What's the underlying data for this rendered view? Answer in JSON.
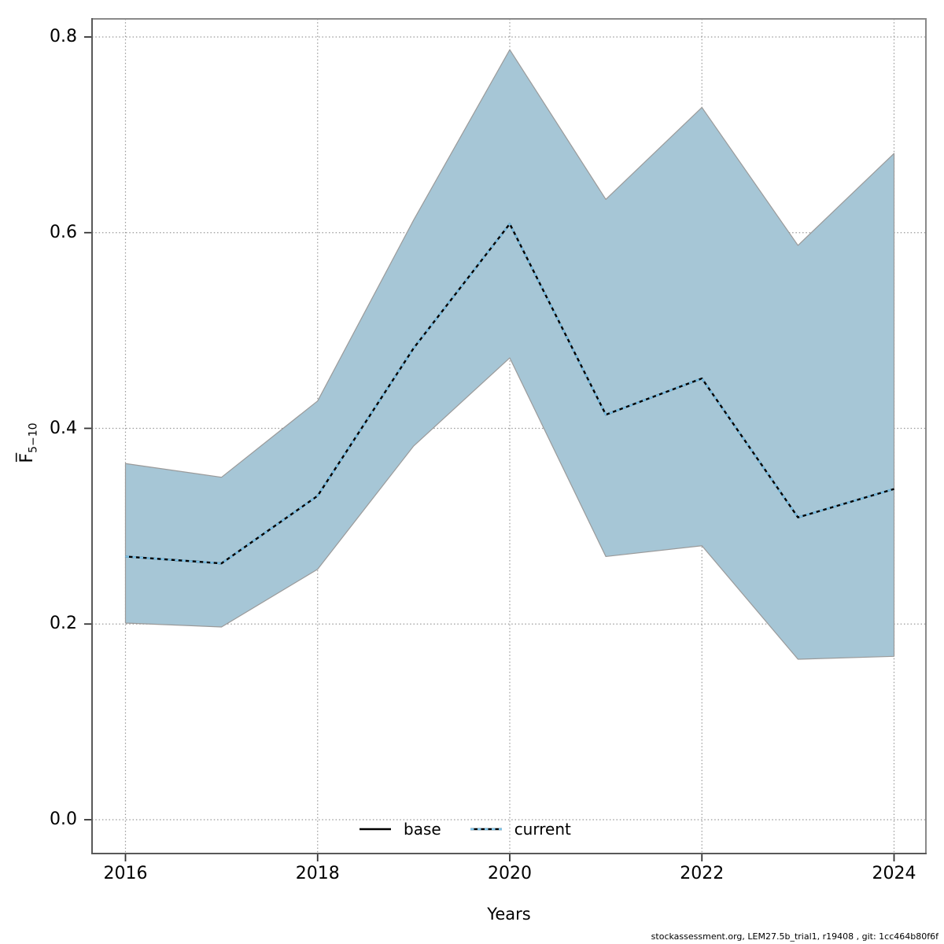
{
  "page": {
    "background": "#ffffff"
  },
  "footer": {
    "text": "stockassessment.org, LEM27.5b_trial1, r19408 , git: 1cc464b80f6f"
  },
  "chart_data": {
    "type": "area",
    "title": "",
    "xlabel": "Years",
    "ylabel_base": "F̅",
    "ylabel_sub": "5−10",
    "xlim": [
      2016,
      2024
    ],
    "ylim": [
      0.0,
      0.8
    ],
    "grid": "dotted",
    "legend_position": "bottom-center",
    "x": [
      2016,
      2017,
      2018,
      2019,
      2020,
      2021,
      2022,
      2023,
      2024
    ],
    "x_tick_labels": [
      "2016",
      "2018",
      "2020",
      "2022",
      "2024"
    ],
    "y_tick_labels": [
      "0.0",
      "0.2",
      "0.4",
      "0.6",
      "0.8"
    ],
    "series": [
      {
        "name": "base",
        "type": "line",
        "style": "solid",
        "color": "#000000",
        "values": [
          0.269,
          0.262,
          0.331,
          0.482,
          0.609,
          0.414,
          0.451,
          0.309,
          0.338
        ]
      },
      {
        "name": "current",
        "type": "line",
        "style": "dotted",
        "color": "#7ac1e7",
        "values": [
          0.269,
          0.262,
          0.331,
          0.482,
          0.609,
          0.414,
          0.451,
          0.309,
          0.338
        ]
      },
      {
        "name": "ci-upper",
        "type": "band-edge",
        "values": [
          0.364,
          0.35,
          0.428,
          0.613,
          0.787,
          0.634,
          0.728,
          0.587,
          0.681
        ]
      },
      {
        "name": "ci-lower",
        "type": "band-edge",
        "values": [
          0.201,
          0.197,
          0.256,
          0.382,
          0.472,
          0.269,
          0.28,
          0.164,
          0.167
        ]
      }
    ],
    "band_color": "#a6c6d6",
    "band_edge_color": "#9a9a9a",
    "grid_color": "#999999",
    "legend": [
      {
        "label": "base"
      },
      {
        "label": "current"
      }
    ]
  }
}
